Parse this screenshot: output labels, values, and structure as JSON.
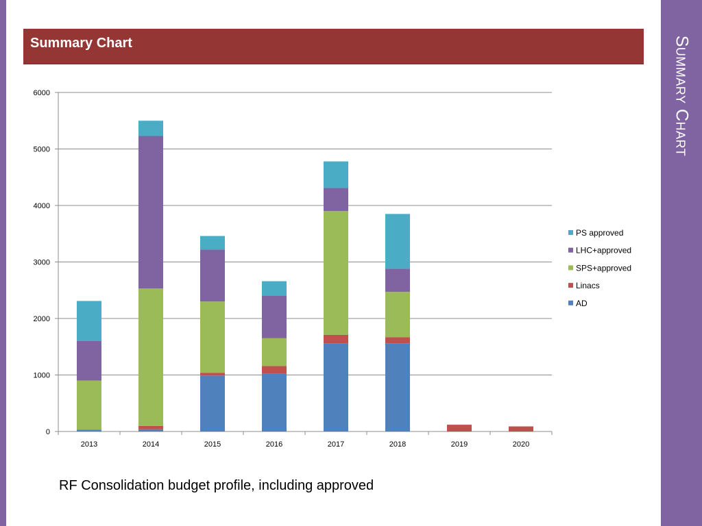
{
  "slide": {
    "header_title": "Summary Chart",
    "side_title": "Summary Chart",
    "caption": "RF Consolidation budget profile, including approved",
    "accent_color": "#8064a2",
    "header_color": "#943634"
  },
  "chart_data": {
    "type": "bar",
    "stacked": true,
    "categories": [
      "2013",
      "2014",
      "2015",
      "2016",
      "2017",
      "2018",
      "2019",
      "2020"
    ],
    "series": [
      {
        "name": "AD",
        "color": "#4f81bd",
        "values": [
          30,
          40,
          990,
          1020,
          1560,
          1560,
          0,
          0
        ]
      },
      {
        "name": "Linacs",
        "color": "#c0504d",
        "values": [
          0,
          60,
          50,
          140,
          150,
          110,
          120,
          90
        ]
      },
      {
        "name": "SPS+approved",
        "color": "#9bbb59",
        "values": [
          870,
          2430,
          1260,
          490,
          2190,
          800,
          0,
          0
        ]
      },
      {
        "name": "LHC+approved",
        "color": "#8064a2",
        "values": [
          700,
          2700,
          920,
          750,
          410,
          410,
          0,
          0
        ]
      },
      {
        "name": "PS approved",
        "color": "#4bacc6",
        "values": [
          710,
          270,
          240,
          260,
          470,
          970,
          0,
          0
        ]
      }
    ],
    "ylim": [
      0,
      6000
    ],
    "yticks": [
      0,
      1000,
      2000,
      3000,
      4000,
      5000,
      6000
    ],
    "grid": true,
    "legend_position": "right",
    "legend_order": [
      "PS approved",
      "LHC+approved",
      "SPS+approved",
      "Linacs",
      "AD"
    ],
    "title": "",
    "xlabel": "",
    "ylabel": ""
  }
}
